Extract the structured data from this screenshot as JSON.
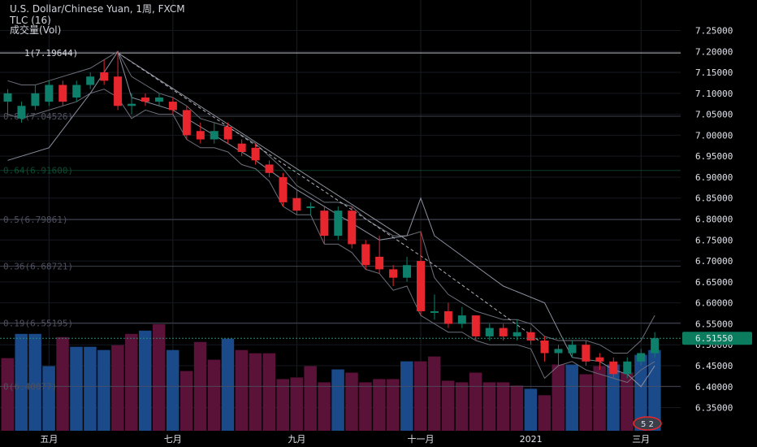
{
  "legend": {
    "symbol_line": "U.S. Dollar/Chinese Yuan, 1周, FXCM",
    "indicator_line": "TLC (16)",
    "volume_line": "成交量(Vol)"
  },
  "price_badge": "6.51550",
  "logo_text": "5 2",
  "colors": {
    "up": "#0e7f6a",
    "down": "#e8262e",
    "vol_up": "#1a4a8a",
    "vol_down": "#5a1238",
    "tlc_band": "#6b6f7a",
    "trendline": "#b0b4be",
    "fib": "#5a5e6a",
    "badge_bg": "#0b7d5e"
  },
  "chart_data": {
    "type": "candlestick",
    "title": "U.S. Dollar/Chinese Yuan, 1周, FXCM",
    "ylim": [
      6.32,
      7.28
    ],
    "y_ticks": [
      "7.25000",
      "7.20000",
      "7.15000",
      "7.10000",
      "7.05000",
      "7.00000",
      "6.95000",
      "6.90000",
      "6.85000",
      "6.80000",
      "6.75000",
      "6.70000",
      "6.65000",
      "6.60000",
      "6.55000",
      "6.50000",
      "6.45000",
      "6.40000",
      "6.35000"
    ],
    "x_ticks": [
      "五月",
      "七月",
      "九月",
      "十一月",
      "2021",
      "三月"
    ],
    "x_tick_index": [
      3,
      12,
      21,
      30,
      38,
      46
    ],
    "candles": [
      [
        7.08,
        7.1,
        7.11,
        7.05
      ],
      [
        7.04,
        7.07,
        7.08,
        7.03
      ],
      [
        7.07,
        7.1,
        7.12,
        7.06
      ],
      [
        7.08,
        7.12,
        7.13,
        7.07
      ],
      [
        7.12,
        7.08,
        7.13,
        7.07
      ],
      [
        7.09,
        7.12,
        7.13,
        7.08
      ],
      [
        7.12,
        7.14,
        7.15,
        7.11
      ],
      [
        7.15,
        7.13,
        7.18,
        7.12
      ],
      [
        7.14,
        7.07,
        7.2,
        7.06
      ],
      [
        7.07,
        7.075,
        7.1,
        7.05
      ],
      [
        7.09,
        7.08,
        7.1,
        7.07
      ],
      [
        7.08,
        7.09,
        7.1,
        7.07
      ],
      [
        7.08,
        7.06,
        7.09,
        7.05
      ],
      [
        7.06,
        7.0,
        7.07,
        6.99
      ],
      [
        7.01,
        6.99,
        7.03,
        6.98
      ],
      [
        6.99,
        7.01,
        7.03,
        6.98
      ],
      [
        7.02,
        6.99,
        7.03,
        6.98
      ],
      [
        6.98,
        6.96,
        6.99,
        6.95
      ],
      [
        6.97,
        6.94,
        6.98,
        6.93
      ],
      [
        6.93,
        6.91,
        6.94,
        6.9
      ],
      [
        6.9,
        6.84,
        6.91,
        6.83
      ],
      [
        6.85,
        6.82,
        6.87,
        6.81
      ],
      [
        6.83,
        6.83,
        6.84,
        6.81
      ],
      [
        6.82,
        6.76,
        6.83,
        6.74
      ],
      [
        6.76,
        6.82,
        6.83,
        6.75
      ],
      [
        6.82,
        6.74,
        6.83,
        6.73
      ],
      [
        6.74,
        6.69,
        6.75,
        6.68
      ],
      [
        6.71,
        6.68,
        6.76,
        6.67
      ],
      [
        6.68,
        6.66,
        6.69,
        6.64
      ],
      [
        6.66,
        6.69,
        6.71,
        6.65
      ],
      [
        6.7,
        6.58,
        6.77,
        6.57
      ],
      [
        6.58,
        6.58,
        6.62,
        6.56
      ],
      [
        6.58,
        6.55,
        6.6,
        6.54
      ],
      [
        6.55,
        6.57,
        6.59,
        6.54
      ],
      [
        6.57,
        6.52,
        6.57,
        6.51
      ],
      [
        6.52,
        6.54,
        6.55,
        6.51
      ],
      [
        6.54,
        6.52,
        6.55,
        6.51
      ],
      [
        6.52,
        6.53,
        6.56,
        6.51
      ],
      [
        6.53,
        6.51,
        6.54,
        6.5
      ],
      [
        6.51,
        6.48,
        6.52,
        6.46
      ],
      [
        6.48,
        6.49,
        6.5,
        6.45
      ],
      [
        6.48,
        6.5,
        6.51,
        6.47
      ],
      [
        6.5,
        6.46,
        6.51,
        6.45
      ],
      [
        6.47,
        6.46,
        6.48,
        6.44
      ],
      [
        6.46,
        6.43,
        6.47,
        6.42
      ],
      [
        6.43,
        6.46,
        6.47,
        6.42
      ],
      [
        6.46,
        6.48,
        6.49,
        6.45
      ],
      [
        6.48,
        6.5155,
        6.53,
        6.47
      ]
    ],
    "volume": [
      [
        0.45,
        0
      ],
      [
        0.6,
        1
      ],
      [
        0.6,
        1
      ],
      [
        0.4,
        1
      ],
      [
        0.58,
        0
      ],
      [
        0.52,
        1
      ],
      [
        0.52,
        1
      ],
      [
        0.5,
        1
      ],
      [
        0.53,
        0
      ],
      [
        0.6,
        0
      ],
      [
        0.62,
        1
      ],
      [
        0.66,
        0
      ],
      [
        0.5,
        1
      ],
      [
        0.37,
        0
      ],
      [
        0.55,
        0
      ],
      [
        0.44,
        0
      ],
      [
        0.57,
        1
      ],
      [
        0.5,
        0
      ],
      [
        0.48,
        0
      ],
      [
        0.48,
        0
      ],
      [
        0.32,
        0
      ],
      [
        0.33,
        0
      ],
      [
        0.4,
        0
      ],
      [
        0.3,
        0
      ],
      [
        0.38,
        1
      ],
      [
        0.36,
        0
      ],
      [
        0.3,
        0
      ],
      [
        0.32,
        0
      ],
      [
        0.32,
        0
      ],
      [
        0.43,
        1
      ],
      [
        0.43,
        0
      ],
      [
        0.46,
        0
      ],
      [
        0.31,
        0
      ],
      [
        0.3,
        0
      ],
      [
        0.36,
        0
      ],
      [
        0.3,
        0
      ],
      [
        0.3,
        0
      ],
      [
        0.28,
        0
      ],
      [
        0.26,
        1
      ],
      [
        0.22,
        0
      ],
      [
        0.41,
        0
      ],
      [
        0.41,
        1
      ],
      [
        0.35,
        0
      ],
      [
        0.4,
        0
      ],
      [
        0.41,
        1
      ],
      [
        0.36,
        0
      ],
      [
        0.47,
        1
      ],
      [
        0.5,
        1
      ]
    ],
    "tlc_upper": [
      [
        0,
        7.13
      ],
      [
        1,
        7.12
      ],
      [
        2,
        7.12
      ],
      [
        3,
        7.13
      ],
      [
        4,
        7.14
      ],
      [
        5,
        7.15
      ],
      [
        6,
        7.16
      ],
      [
        7,
        7.18
      ],
      [
        8,
        7.2
      ],
      [
        9,
        7.14
      ],
      [
        10,
        7.12
      ],
      [
        11,
        7.1
      ],
      [
        12,
        7.09
      ],
      [
        13,
        7.07
      ],
      [
        14,
        7.04
      ],
      [
        15,
        7.03
      ],
      [
        16,
        7.02
      ],
      [
        17,
        7.0
      ],
      [
        18,
        6.98
      ],
      [
        19,
        6.95
      ],
      [
        20,
        6.92
      ],
      [
        21,
        6.88
      ],
      [
        22,
        6.86
      ],
      [
        23,
        6.84
      ],
      [
        24,
        6.84
      ],
      [
        25,
        6.83
      ],
      [
        26,
        6.8
      ],
      [
        27,
        6.78
      ],
      [
        28,
        6.76
      ],
      [
        29,
        6.76
      ],
      [
        30,
        6.77
      ],
      [
        31,
        6.66
      ],
      [
        32,
        6.62
      ],
      [
        33,
        6.6
      ],
      [
        34,
        6.58
      ],
      [
        35,
        6.57
      ],
      [
        36,
        6.56
      ],
      [
        37,
        6.56
      ],
      [
        38,
        6.55
      ],
      [
        39,
        6.52
      ],
      [
        40,
        6.51
      ],
      [
        41,
        6.51
      ],
      [
        42,
        6.51
      ],
      [
        43,
        6.5
      ],
      [
        44,
        6.48
      ],
      [
        45,
        6.48
      ],
      [
        46,
        6.51
      ],
      [
        47,
        6.57
      ]
    ],
    "tlc_lower": [
      [
        0,
        7.05
      ],
      [
        1,
        7.04
      ],
      [
        2,
        7.05
      ],
      [
        3,
        7.06
      ],
      [
        4,
        7.07
      ],
      [
        5,
        7.08
      ],
      [
        6,
        7.1
      ],
      [
        7,
        7.11
      ],
      [
        8,
        7.09
      ],
      [
        9,
        7.04
      ],
      [
        10,
        7.06
      ],
      [
        11,
        7.05
      ],
      [
        12,
        7.05
      ],
      [
        13,
        6.99
      ],
      [
        14,
        6.97
      ],
      [
        15,
        6.97
      ],
      [
        16,
        6.96
      ],
      [
        17,
        6.93
      ],
      [
        18,
        6.92
      ],
      [
        19,
        6.89
      ],
      [
        20,
        6.83
      ],
      [
        21,
        6.81
      ],
      [
        22,
        6.81
      ],
      [
        23,
        6.74
      ],
      [
        24,
        6.74
      ],
      [
        25,
        6.72
      ],
      [
        26,
        6.68
      ],
      [
        27,
        6.67
      ],
      [
        28,
        6.63
      ],
      [
        29,
        6.64
      ],
      [
        30,
        6.57
      ],
      [
        31,
        6.55
      ],
      [
        32,
        6.53
      ],
      [
        33,
        6.53
      ],
      [
        34,
        6.51
      ],
      [
        35,
        6.5
      ],
      [
        36,
        6.5
      ],
      [
        37,
        6.5
      ],
      [
        38,
        6.49
      ],
      [
        39,
        6.42
      ],
      [
        40,
        6.45
      ],
      [
        41,
        6.46
      ],
      [
        42,
        6.44
      ],
      [
        43,
        6.43
      ],
      [
        44,
        6.42
      ],
      [
        45,
        6.41
      ],
      [
        46,
        6.44
      ],
      [
        47,
        6.46
      ]
    ],
    "tlc_middle": [
      [
        0,
        6.94
      ],
      [
        3,
        6.97
      ],
      [
        6,
        7.1
      ],
      [
        8,
        7.2
      ],
      [
        9,
        7.09
      ],
      [
        10,
        7.08
      ],
      [
        12,
        7.06
      ],
      [
        15,
        7.0
      ],
      [
        18,
        6.94
      ],
      [
        21,
        6.87
      ],
      [
        24,
        6.81
      ],
      [
        27,
        6.75
      ],
      [
        29,
        6.76
      ],
      [
        30,
        6.85
      ],
      [
        31,
        6.76
      ],
      [
        36,
        6.64
      ],
      [
        39,
        6.6
      ],
      [
        41,
        6.47
      ],
      [
        43,
        6.46
      ],
      [
        44,
        6.44
      ],
      [
        45,
        6.43
      ],
      [
        46,
        6.4
      ],
      [
        47,
        6.45
      ]
    ],
    "trendline_dashed": [
      [
        8,
        7.19644
      ],
      [
        31,
        6.69
      ],
      [
        39,
        6.5
      ]
    ],
    "trendline_solid": [
      [
        8,
        7.19644
      ],
      [
        29,
        6.75
      ]
    ],
    "fib_levels": [
      {
        "label": "1(7.19644)",
        "value": 7.19644,
        "color": "#d1d4dc"
      },
      {
        "label": "0.81(7.04526)",
        "value": 7.04526,
        "color": "#4e5060"
      },
      {
        "label": "0.64(6.91600)",
        "value": 6.916,
        "color": "#0e4a32"
      },
      {
        "label": "0.5(6.79861)",
        "value": 6.79861,
        "color": "#4e5060"
      },
      {
        "label": "0.36(6.68721)",
        "value": 6.68721,
        "color": "#4e5060"
      },
      {
        "label": "0.19(6.55195)",
        "value": 6.55195,
        "color": "#4e5060"
      },
      {
        "label": "0(6.40077)",
        "value": 6.40077,
        "color": "#4e5060"
      }
    ]
  }
}
